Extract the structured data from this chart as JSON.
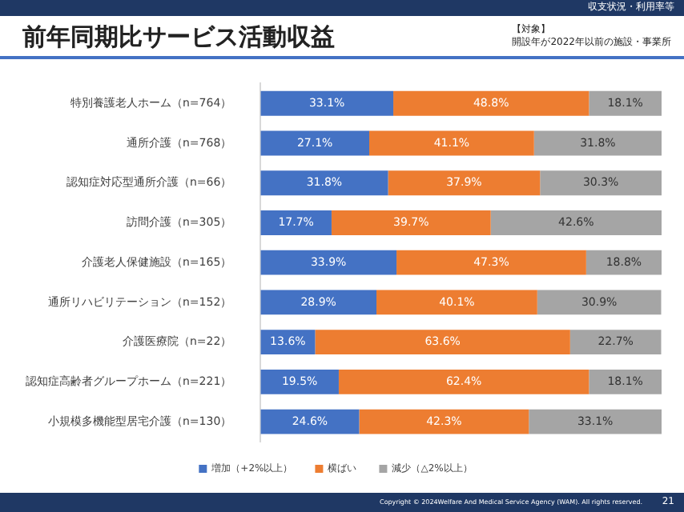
{
  "chart_data": {
    "type": "bar",
    "orientation": "horizontal",
    "stacked": true,
    "title": "前年同期比サービス活動収益",
    "subtitle": "収支状況・利用率等",
    "annotations": [
      "【対象】",
      "開設年が2022年以前の施設・事業所",
      "Copyright © 2024Welfare And Medical Service Agency (WAM). All rights reserved.",
      "21"
    ],
    "categories": [
      "特別養護老人ホーム（n=764）",
      "通所介護（n=768）",
      "認知症対応型通所介護（n=66）",
      "訪問介護（n=305）",
      "介護老人保健施設（n=165）",
      "通所リハビリテーション（n=152）",
      "介護医療院（n=22）",
      "認知症高齢者グループホーム（n=221）",
      "小規模多機能型居宅介護（n=130）"
    ],
    "series": [
      {
        "name": "増加（+2%以上）",
        "color": "#4472c4",
        "values": [
          33.1,
          27.1,
          31.8,
          17.7,
          33.9,
          28.9,
          13.6,
          19.5,
          24.6
        ],
        "value_labels": [
          "33.1%",
          "27.1%",
          "31.8%",
          "17.7%",
          "33.9%",
          "28.9%",
          "13.6%",
          "19.5%",
          "24.6%"
        ]
      },
      {
        "name": "横ばい",
        "color": "#ed7d31",
        "values": [
          48.8,
          41.1,
          37.9,
          39.7,
          47.3,
          40.1,
          63.6,
          62.4,
          42.3
        ],
        "value_labels": [
          "48.8%",
          "41.1%",
          "37.9%",
          "39.7%",
          "47.3%",
          "40.1%",
          "63.6%",
          "62.4%",
          "42.3%"
        ]
      },
      {
        "name": "減少（△2%以上）",
        "color": "#a5a5a5",
        "values": [
          18.1,
          31.8,
          30.3,
          42.6,
          18.8,
          30.9,
          22.7,
          18.1,
          33.1
        ],
        "value_labels": [
          "18.1%",
          "31.8%",
          "30.3%",
          "42.6%",
          "18.8%",
          "30.9%",
          "22.7%",
          "18.1%",
          "33.1%"
        ]
      }
    ],
    "xlim": [
      0,
      100
    ],
    "tick_labels": "y",
    "legend": "bottom"
  }
}
